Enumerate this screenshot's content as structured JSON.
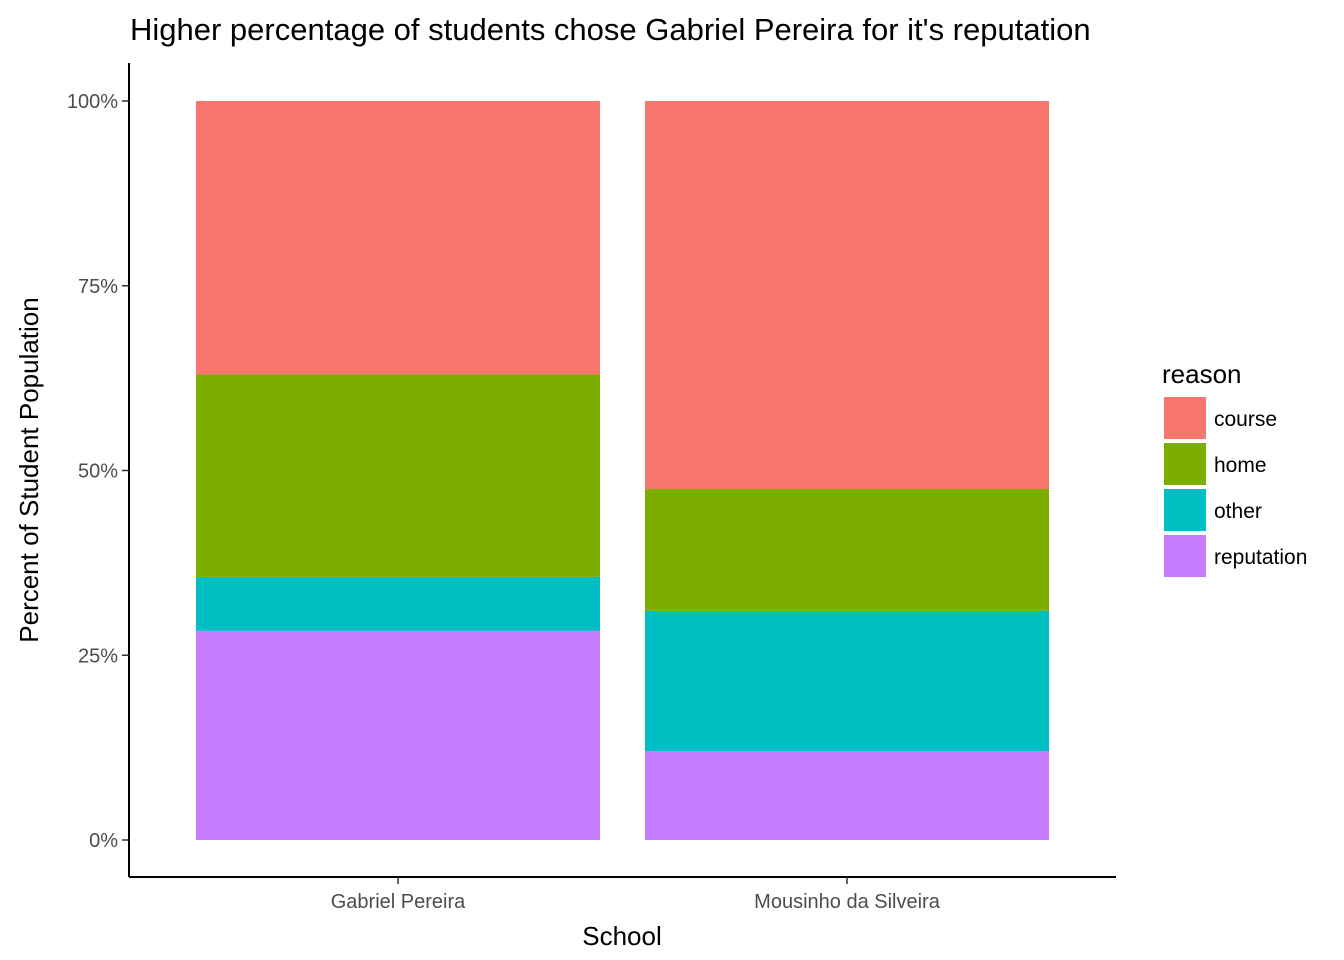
{
  "chart_data": {
    "type": "bar",
    "stacked": true,
    "title": "Higher percentage of students chose Gabriel Pereira for it's reputation",
    "xlabel": "School",
    "ylabel": "Percent of Student Population",
    "categories": [
      "Gabriel Pereira",
      "Mousinho da Silveira"
    ],
    "ylim": [
      0,
      1
    ],
    "y_ticks": [
      0,
      0.25,
      0.5,
      0.75,
      1.0
    ],
    "y_tick_labels": [
      "0%",
      "25%",
      "50%",
      "75%",
      "100%"
    ],
    "series": [
      {
        "name": "course",
        "color": "#F8766D",
        "values": [
          0.37,
          0.525
        ]
      },
      {
        "name": "home",
        "color": "#7CAE00",
        "values": [
          0.274,
          0.165
        ]
      },
      {
        "name": "other",
        "color": "#00BFC4",
        "values": [
          0.073,
          0.19
        ]
      },
      {
        "name": "reputation",
        "color": "#C77CFF",
        "values": [
          0.283,
          0.12
        ]
      }
    ],
    "legend": {
      "title": "reason",
      "position": "right"
    },
    "grid": false
  }
}
